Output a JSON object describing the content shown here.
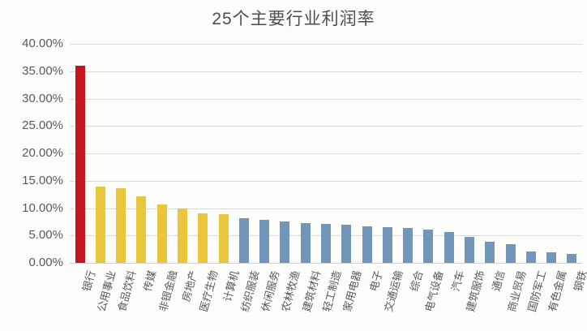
{
  "title": "25个主要行业利润率",
  "chart_data": {
    "type": "bar",
    "title": "25个主要行业利润率",
    "xlabel": "",
    "ylabel": "",
    "ylim": [
      0,
      40
    ],
    "ytick_step": 5,
    "ytick_labels": [
      "40.00%",
      "35.00%",
      "30.00%",
      "25.00%",
      "20.00%",
      "15.00%",
      "10.00%",
      "5.00%",
      "0.00%"
    ],
    "grid": true,
    "legend": "none",
    "categories": [
      "银行",
      "公用事业",
      "食品饮料",
      "传媒",
      "非银金融",
      "房地产",
      "医疗生物",
      "计算机",
      "纺织服装",
      "休闲服务",
      "农林牧渔",
      "建筑材料",
      "轻工制造",
      "家用电器",
      "电子",
      "交通运输",
      "综合",
      "电气设备",
      "汽车",
      "建筑服饰",
      "通信",
      "商业贸易",
      "国防军工",
      "有色金属",
      "钢铁"
    ],
    "values": [
      36.0,
      13.9,
      13.7,
      12.1,
      10.6,
      9.9,
      9.0,
      8.9,
      8.2,
      7.9,
      7.5,
      7.2,
      7.1,
      7.0,
      6.6,
      6.5,
      6.3,
      6.1,
      5.7,
      4.7,
      3.9,
      3.4,
      2.1,
      1.9,
      1.6
    ],
    "bar_colors": [
      "#c5161d",
      "#e9c63b",
      "#e9c63b",
      "#e9c63b",
      "#e9c63b",
      "#e9c63b",
      "#e9c63b",
      "#e9c63b",
      "#7296ba",
      "#7296ba",
      "#7296ba",
      "#7296ba",
      "#7296ba",
      "#7296ba",
      "#7296ba",
      "#7296ba",
      "#7296ba",
      "#7296ba",
      "#7296ba",
      "#7296ba",
      "#7296ba",
      "#7296ba",
      "#7296ba",
      "#7296ba",
      "#7296ba"
    ]
  },
  "colors": {
    "highlight_bar": "#c5161d",
    "secondary_bar": "#e9c63b",
    "default_bar": "#7296ba",
    "gridline": "#d9d9d9",
    "axis_text": "#595959",
    "title_text": "#4d4d4d",
    "background": "#fdfdfb"
  }
}
